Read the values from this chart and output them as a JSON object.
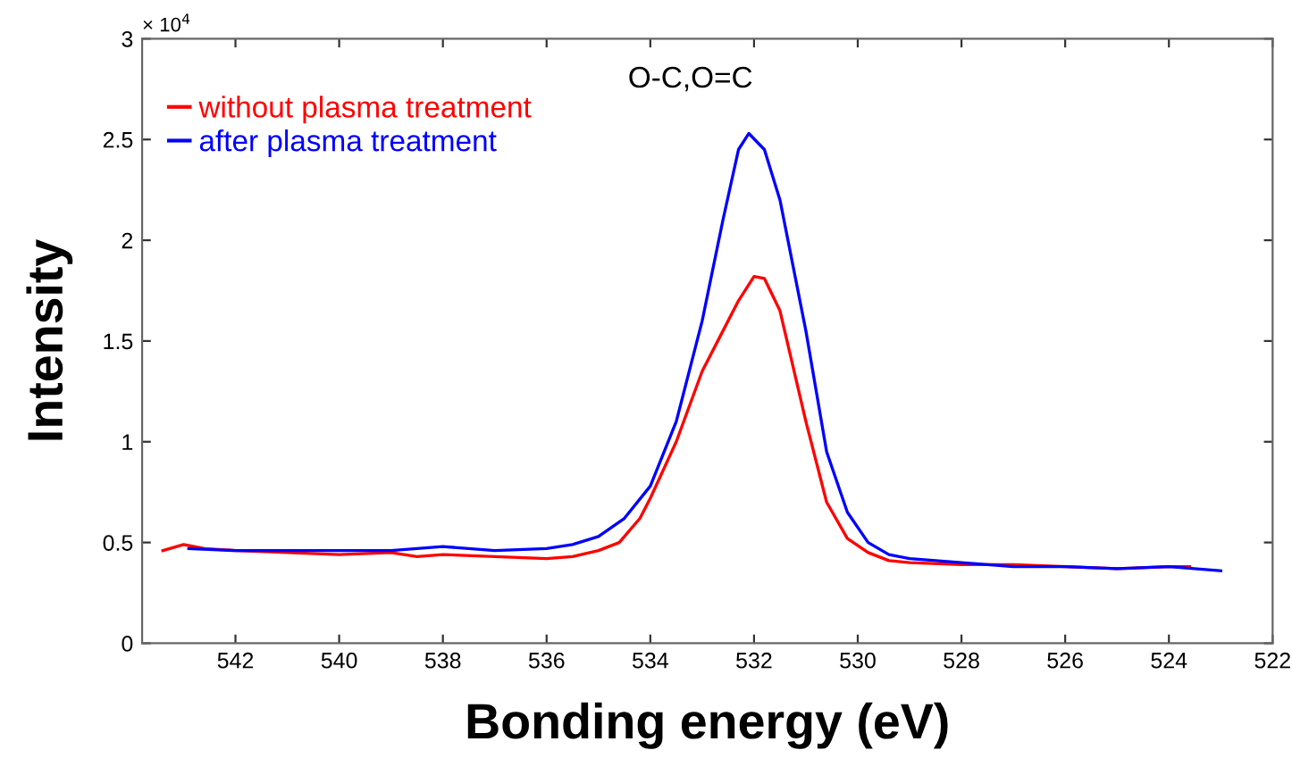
{
  "chart_data": {
    "type": "line",
    "xlabel": "Bonding energy (eV)",
    "ylabel": "Intensity",
    "xlim": [
      543.8,
      522
    ],
    "xticks": [
      542,
      540,
      538,
      536,
      534,
      532,
      530,
      528,
      526,
      524,
      522
    ],
    "ylim": [
      0,
      3
    ],
    "yticks": [
      0,
      0.5,
      1,
      1.5,
      2,
      2.5,
      3
    ],
    "annotations": [
      "× 10$^{4}$",
      "O-C,O=C"
    ],
    "grid": false,
    "legend": "top left",
    "marker": "none",
    "line_style": "solid",
    "series": [
      {
        "name": "without plasma treatment",
        "color": "#ff0000",
        "x": [
          543.4,
          543.0,
          542.6,
          542,
          541,
          540,
          539,
          538.5,
          538,
          537,
          536,
          535.5,
          535,
          534.6,
          534.2,
          534,
          533.5,
          533.0,
          532.6,
          532.3,
          532.0,
          531.8,
          531.5,
          531.0,
          530.6,
          530.2,
          529.8,
          529.4,
          529,
          528,
          527,
          526,
          525,
          524,
          523.6
        ],
        "values": [
          0.46,
          0.49,
          0.47,
          0.46,
          0.45,
          0.44,
          0.45,
          0.43,
          0.44,
          0.43,
          0.42,
          0.43,
          0.46,
          0.5,
          0.62,
          0.72,
          1.0,
          1.35,
          1.55,
          1.7,
          1.82,
          1.81,
          1.65,
          1.1,
          0.7,
          0.52,
          0.45,
          0.41,
          0.4,
          0.39,
          0.39,
          0.38,
          0.37,
          0.38,
          0.38
        ]
      },
      {
        "name": "after plasma treatment",
        "color": "#0000ff",
        "x": [
          542.9,
          542,
          541,
          540,
          539,
          538,
          537,
          536,
          535.5,
          535,
          534.5,
          534,
          533.5,
          533,
          532.6,
          532.3,
          532.1,
          531.8,
          531.5,
          531,
          530.6,
          530.2,
          529.8,
          529.4,
          529,
          528,
          527,
          526,
          525,
          524,
          523
        ],
        "values": [
          0.47,
          0.46,
          0.46,
          0.46,
          0.46,
          0.48,
          0.46,
          0.47,
          0.49,
          0.53,
          0.62,
          0.78,
          1.1,
          1.6,
          2.1,
          2.45,
          2.53,
          2.45,
          2.2,
          1.55,
          0.95,
          0.65,
          0.5,
          0.44,
          0.42,
          0.4,
          0.38,
          0.38,
          0.37,
          0.38,
          0.36
        ]
      }
    ]
  }
}
